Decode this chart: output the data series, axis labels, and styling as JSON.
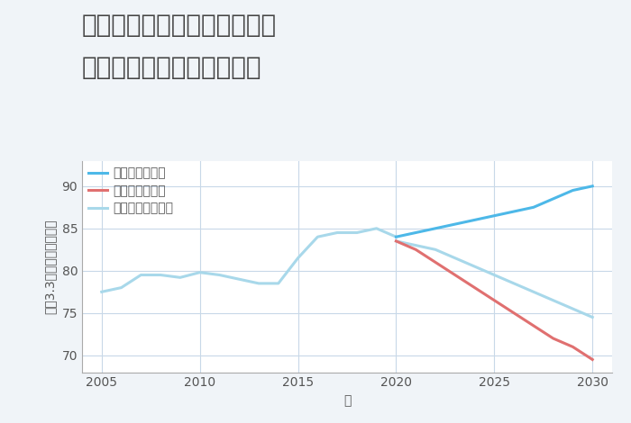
{
  "title_line1": "岐阜県可児郡御嵩町美佐野の",
  "title_line2": "中古マンションの価格推移",
  "xlabel": "年",
  "ylabel": "坪（3.3㎡）単価（万円）",
  "background_color": "#f0f4f8",
  "plot_bg_color": "#ffffff",
  "historical": {
    "years": [
      2005,
      2006,
      2007,
      2008,
      2009,
      2010,
      2011,
      2012,
      2013,
      2014,
      2015,
      2016,
      2017,
      2018,
      2019,
      2020
    ],
    "values": [
      77.5,
      78.0,
      79.5,
      79.5,
      79.2,
      79.8,
      79.5,
      79.0,
      78.5,
      78.5,
      81.5,
      84.0,
      84.5,
      84.5,
      85.0,
      84.0
    ],
    "color": "#a8d8ea",
    "linewidth": 2.2
  },
  "good": {
    "years": [
      2020,
      2021,
      2022,
      2023,
      2024,
      2025,
      2026,
      2027,
      2028,
      2029,
      2030
    ],
    "values": [
      84.0,
      84.5,
      85.0,
      85.5,
      86.0,
      86.5,
      87.0,
      87.5,
      88.5,
      89.5,
      90.0
    ],
    "color": "#4db8e8",
    "linewidth": 2.2,
    "label": "グッドシナリオ"
  },
  "bad": {
    "years": [
      2020,
      2021,
      2022,
      2023,
      2024,
      2025,
      2026,
      2027,
      2028,
      2029,
      2030
    ],
    "values": [
      83.5,
      82.5,
      81.0,
      79.5,
      78.0,
      76.5,
      75.0,
      73.5,
      72.0,
      71.0,
      69.5
    ],
    "color": "#e07070",
    "linewidth": 2.2,
    "label": "バッドシナリオ"
  },
  "normal": {
    "years": [
      2020,
      2021,
      2022,
      2023,
      2024,
      2025,
      2026,
      2027,
      2028,
      2029,
      2030
    ],
    "values": [
      83.5,
      83.0,
      82.5,
      81.5,
      80.5,
      79.5,
      78.5,
      77.5,
      76.5,
      75.5,
      74.5
    ],
    "color": "#a8d8ea",
    "linewidth": 2.2,
    "label": "ノーマルシナリオ"
  },
  "ylim": [
    68,
    93
  ],
  "yticks": [
    70,
    75,
    80,
    85,
    90
  ],
  "xticks": [
    2005,
    2010,
    2015,
    2020,
    2025,
    2030
  ],
  "grid_color": "#c8d8e8",
  "title_color": "#444444",
  "title_fontsize": 20,
  "axis_label_fontsize": 10,
  "tick_fontsize": 10,
  "legend_fontsize": 10
}
